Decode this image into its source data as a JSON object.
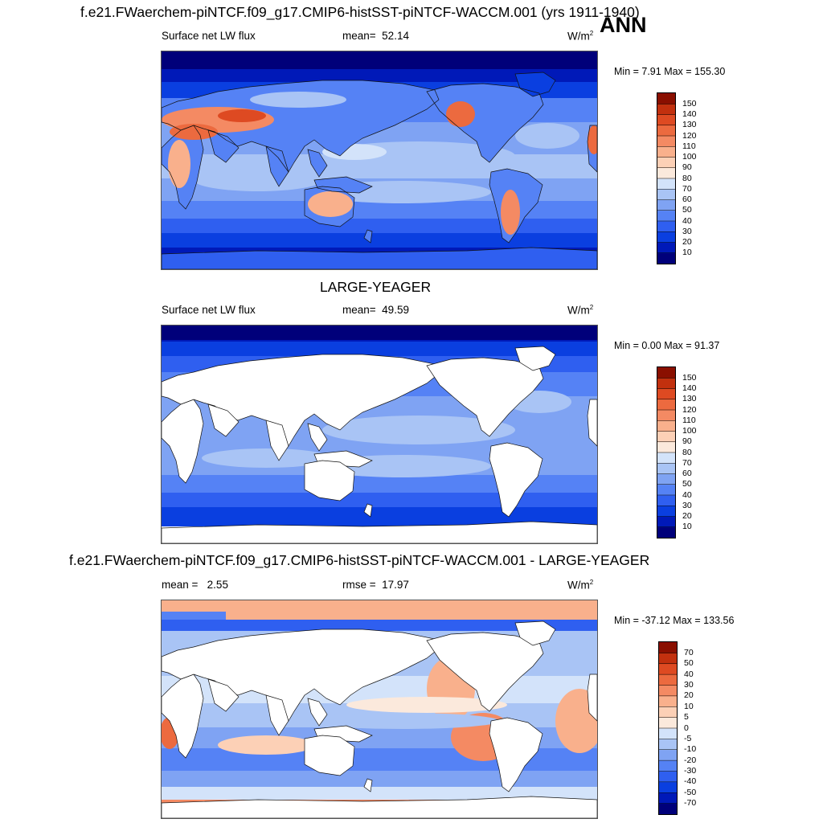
{
  "header": {
    "ann": "ANN",
    "top_title": "f.e21.FWaerchem-piNTCF.f09_g17.CMIP6-histSST-piNTCF-WACCM.001 (yrs 1911-1940)",
    "mid_title": "LARGE-YEAGER",
    "diff_title": "f.e21.FWaerchem-piNTCF.f09_g17.CMIP6-histSST-piNTCF-WACCM.001 - LARGE-YEAGER"
  },
  "panels": [
    {
      "variable": "Surface net LW flux",
      "stat1_label": "mean=",
      "stat1_value": "52.14",
      "stat2_label": "",
      "stat2_value": "",
      "units_base": "W/m",
      "units_exp": "2",
      "minmax": "Min =   7.91 Max = 155.30"
    },
    {
      "variable": "Surface net LW flux",
      "stat1_label": "mean=",
      "stat1_value": "49.59",
      "stat2_label": "",
      "stat2_value": "",
      "units_base": "W/m",
      "units_exp": "2",
      "minmax": "Min =   0.00 Max =  91.37"
    },
    {
      "variable": "",
      "stat1_label": "mean =",
      "stat1_value": "2.55",
      "stat2_label": "rmse =",
      "stat2_value": "17.97",
      "units_base": "W/m",
      "units_exp": "2",
      "minmax": "Min = -37.12 Max = 133.56"
    }
  ],
  "chart_data": [
    {
      "type": "heatmap",
      "title": "f.e21.FWaerchem-piNTCF.f09_g17.CMIP6-histSST-piNTCF-WACCM.001 (yrs 1911-1940)",
      "variable": "Surface net LW flux",
      "units": "W/m2",
      "mean": 52.14,
      "min": 7.91,
      "max": 155.3,
      "colorbar_levels": [
        10,
        20,
        30,
        40,
        50,
        60,
        70,
        80,
        90,
        100,
        110,
        120,
        130,
        140,
        150
      ],
      "colorbar_colors": [
        "#00007a",
        "#0019b8",
        "#0a3fe0",
        "#2f5ff0",
        "#5582f5",
        "#7fa3f3",
        "#a9c4f5",
        "#d3e3fa",
        "#fbe9dc",
        "#fcd0b6",
        "#f9b08c",
        "#f48a63",
        "#ec6a3f",
        "#de4a22",
        "#c2300e",
        "#8a0f00"
      ]
    },
    {
      "type": "heatmap",
      "title": "LARGE-YEAGER",
      "variable": "Surface net LW flux",
      "units": "W/m2",
      "mean": 49.59,
      "min": 0.0,
      "max": 91.37,
      "colorbar_levels": [
        10,
        20,
        30,
        40,
        50,
        60,
        70,
        80,
        90,
        100,
        110,
        120,
        130,
        140,
        150
      ],
      "colorbar_colors": [
        "#00007a",
        "#0019b8",
        "#0a3fe0",
        "#2f5ff0",
        "#5582f5",
        "#7fa3f3",
        "#a9c4f5",
        "#d3e3fa",
        "#fbe9dc",
        "#fcd0b6",
        "#f9b08c",
        "#f48a63",
        "#ec6a3f",
        "#de4a22",
        "#c2300e",
        "#8a0f00"
      ]
    },
    {
      "type": "heatmap",
      "title": "f.e21.FWaerchem-piNTCF.f09_g17.CMIP6-histSST-piNTCF-WACCM.001 - LARGE-YEAGER",
      "units": "W/m2",
      "mean": 2.55,
      "rmse": 17.97,
      "min": -37.12,
      "max": 133.56,
      "colorbar_levels": [
        -70,
        -50,
        -40,
        -30,
        -20,
        -10,
        -5,
        0,
        5,
        10,
        20,
        30,
        40,
        50,
        70
      ],
      "colorbar_colors": [
        "#00007a",
        "#0019b8",
        "#0a3fe0",
        "#2f5ff0",
        "#5582f5",
        "#7fa3f3",
        "#a9c4f5",
        "#d3e3fa",
        "#fbe9dc",
        "#fcd0b6",
        "#f9b08c",
        "#f48a63",
        "#ec6a3f",
        "#de4a22",
        "#c2300e",
        "#8a0f00"
      ]
    }
  ]
}
